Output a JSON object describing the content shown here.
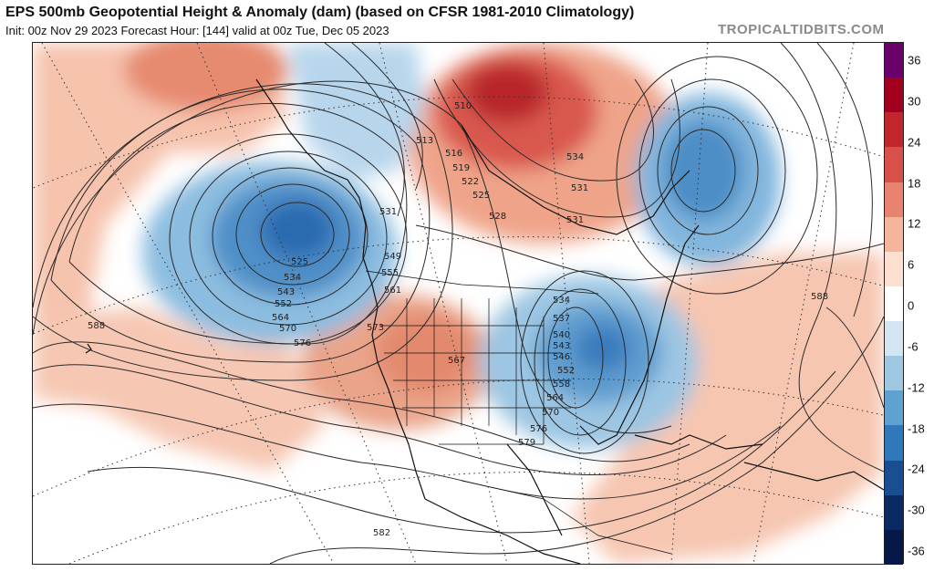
{
  "header": {
    "title": "EPS 500mb Geopotential Height & Anomaly (dam) (based on CFSR 1981-2010 Climatology)",
    "subtitle": "Init: 00z Nov 29 2023   Forecast Hour: [144]   valid at 00z Tue, Dec 05 2023",
    "site": "TROPICALTIDBITS.COM"
  },
  "colorbar": {
    "ticks": [
      "36",
      "30",
      "24",
      "18",
      "12",
      "6",
      "0",
      "-6",
      "-12",
      "-18",
      "-24",
      "-30",
      "-36"
    ],
    "colors": [
      "#6a006a",
      "#a1001e",
      "#c0262c",
      "#d8504a",
      "#e9836f",
      "#f5b59b",
      "#fbe0d2",
      "#ffffff",
      "#d2e5f1",
      "#9ec8e2",
      "#5fa2d1",
      "#2f78b9",
      "#1a4d91",
      "#0b2a63",
      "#061848"
    ]
  },
  "map": {
    "contour_labels": [
      "510",
      "513",
      "516",
      "519",
      "522",
      "525",
      "528",
      "531",
      "534",
      "531",
      "531",
      "549",
      "555",
      "561",
      "525",
      "534",
      "543",
      "552",
      "564",
      "570",
      "576",
      "573",
      "567",
      "534",
      "537",
      "540",
      "543",
      "546",
      "552",
      "558",
      "564",
      "570",
      "576",
      "579",
      "582",
      "588",
      "588"
    ],
    "features": [
      "anomaly-low-northeast-pacific",
      "anomaly-high-arctic-canada",
      "anomaly-low-north-atlantic",
      "anomaly-low-eastern-us",
      "anomaly-high-southwest-us"
    ]
  }
}
